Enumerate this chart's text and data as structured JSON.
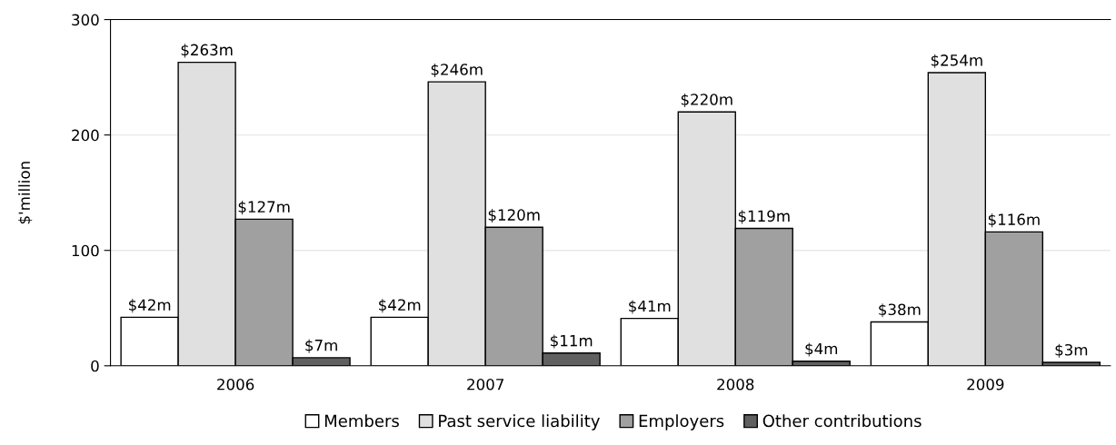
{
  "chart_data": {
    "type": "bar",
    "ylabel": "$'million",
    "categories": [
      "2006",
      "2007",
      "2008",
      "2009"
    ],
    "series": [
      {
        "name": "Members",
        "color": "#ffffff",
        "values": [
          42,
          42,
          41,
          38
        ],
        "value_labels": [
          "$42m",
          "$42m",
          "$41m",
          "$38m"
        ]
      },
      {
        "name": "Past service liability",
        "color": "#e0e0e0",
        "values": [
          263,
          246,
          220,
          254
        ],
        "value_labels": [
          "$263m",
          "$246m",
          "$220m",
          "$254m"
        ]
      },
      {
        "name": "Employers",
        "color": "#a0a0a0",
        "values": [
          127,
          120,
          119,
          116
        ],
        "value_labels": [
          "$127m",
          "$120m",
          "$119m",
          "$116m"
        ]
      },
      {
        "name": "Other contributions",
        "color": "#606060",
        "values": [
          7,
          11,
          4,
          3
        ],
        "value_labels": [
          "$7m",
          "$11m",
          "$4m",
          "$3m"
        ]
      }
    ],
    "ylim": [
      0,
      300
    ],
    "yticks": [
      0,
      100,
      200,
      300
    ],
    "grid": "y",
    "legend": "bottom"
  }
}
